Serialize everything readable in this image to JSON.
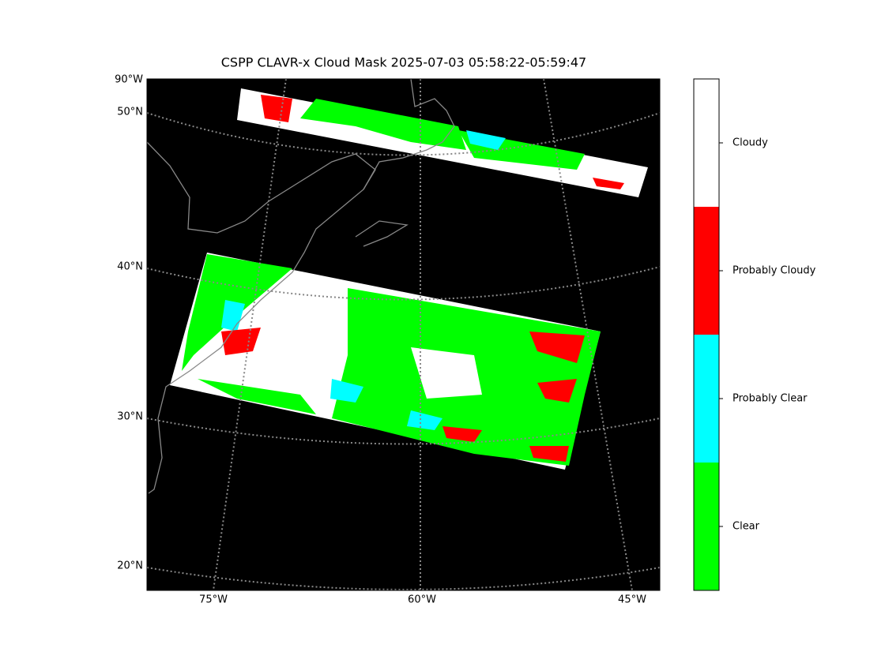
{
  "title": "CSPP CLAVR-x Cloud Mask 2025-07-03 05:58:22-05:59:47",
  "map": {
    "lat_labels": [
      "90°W",
      "50°N",
      "40°N",
      "30°N",
      "20°N"
    ],
    "lon_labels": [
      "75°W",
      "60°W",
      "45°W"
    ]
  },
  "colorbar": {
    "classes": [
      {
        "label": "Clear",
        "color": "#00ff00"
      },
      {
        "label": "Probably Clear",
        "color": "#00ffff"
      },
      {
        "label": "Probably Cloudy",
        "color": "#ff0000"
      },
      {
        "label": "Cloudy",
        "color": "#ffffff"
      }
    ]
  }
}
